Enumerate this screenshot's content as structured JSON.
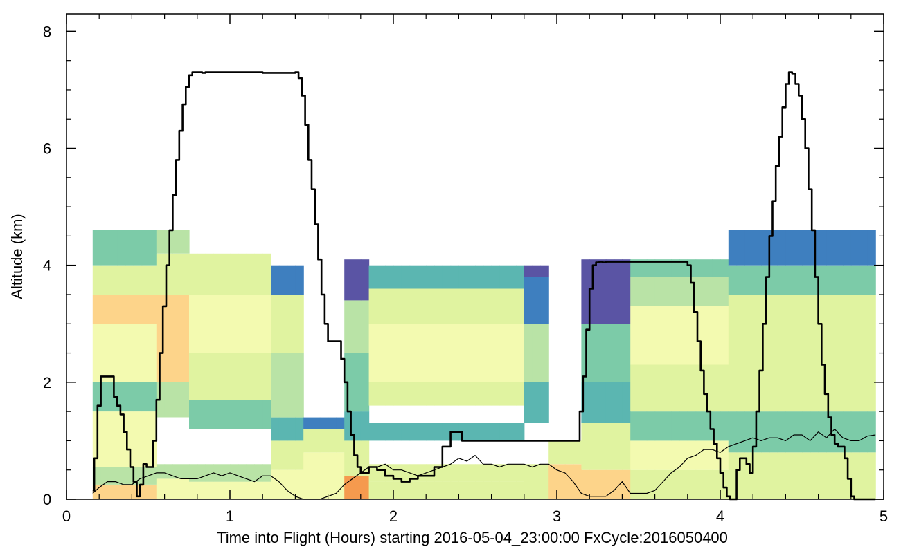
{
  "chart_data": {
    "type": "heatmap",
    "title": "",
    "xlabel": "Time into Flight (Hours) starting 2016-05-04_23:00:00  FxCycle:2016050400",
    "ylabel": "Altitude (km)",
    "xlim": [
      0,
      5
    ],
    "ylim": [
      0,
      8.3
    ],
    "xticks": [
      0,
      1,
      2,
      3,
      4,
      5
    ],
    "xtick_labels": [
      "0",
      "1",
      "2",
      "3",
      "4",
      "5"
    ],
    "yticks": [
      0,
      2,
      4,
      6,
      8
    ],
    "ytick_labels": [
      "0",
      "2",
      "4",
      "6",
      "8"
    ],
    "x_minor_step": 0.2,
    "y_minor_step": 0.5,
    "grid": false,
    "palette": [
      "#f59a4e",
      "#fdd48a",
      "#f3fab0",
      "#e0f3a0",
      "#b9e3a6",
      "#7ccba8",
      "#5bb6b1",
      "#3e7fbf",
      "#5a54a4"
    ],
    "colorbar": "none",
    "series": [
      {
        "style": "thick-black",
        "x": [
          0.16,
          0.17,
          0.19,
          0.21,
          0.23,
          0.28,
          0.29,
          0.31,
          0.33,
          0.35,
          0.37,
          0.39,
          0.41,
          0.43,
          0.45,
          0.47,
          0.49,
          0.51,
          0.53,
          0.55,
          0.57,
          0.59,
          0.61,
          0.63,
          0.65,
          0.67,
          0.69,
          0.71,
          0.73,
          0.75,
          0.77,
          0.79,
          0.81,
          0.83,
          0.85,
          1.05,
          1.2,
          1.4,
          1.42,
          1.44,
          1.46,
          1.48,
          1.5,
          1.52,
          1.54,
          1.56,
          1.58,
          1.6,
          1.62,
          1.64,
          1.66,
          1.68,
          1.7,
          1.72,
          1.74,
          1.76,
          1.78,
          1.8,
          1.85,
          1.9,
          1.95,
          2.0,
          2.05,
          2.1,
          2.15,
          2.2,
          2.25,
          2.3,
          2.35,
          2.38,
          2.42,
          3.0,
          3.12,
          3.14,
          3.16,
          3.18,
          3.2,
          3.22,
          3.24,
          3.26,
          3.28,
          3.3,
          3.35,
          3.55,
          3.75,
          3.8,
          3.82,
          3.84,
          3.86,
          3.88,
          3.9,
          3.92,
          3.94,
          3.96,
          3.98,
          4.0,
          4.02,
          4.04,
          4.06,
          4.08,
          4.1,
          4.12,
          4.14,
          4.16,
          4.18,
          4.2,
          4.22,
          4.24,
          4.26,
          4.28,
          4.3,
          4.32,
          4.34,
          4.36,
          4.38,
          4.4,
          4.42,
          4.44,
          4.46,
          4.48,
          4.5,
          4.52,
          4.54,
          4.56,
          4.58,
          4.6,
          4.62,
          4.64,
          4.66,
          4.68,
          4.7,
          4.72,
          4.74,
          4.76,
          4.78,
          4.8,
          4.82,
          4.84,
          4.86,
          4.88,
          4.9,
          4.92,
          4.95
        ],
        "y": [
          0.15,
          0.7,
          1.6,
          2.1,
          2.1,
          2.1,
          1.75,
          1.6,
          1.45,
          1.15,
          0.85,
          0.55,
          0.3,
          0.05,
          0.25,
          0.6,
          0.55,
          0.55,
          1.0,
          1.7,
          2.5,
          3.3,
          4.0,
          4.6,
          5.2,
          5.8,
          6.3,
          6.75,
          7.05,
          7.25,
          7.3,
          7.3,
          7.3,
          7.29,
          7.3,
          7.3,
          7.29,
          7.3,
          7.2,
          6.9,
          6.4,
          5.8,
          5.3,
          4.7,
          4.1,
          3.5,
          3.0,
          2.7,
          2.7,
          2.7,
          2.7,
          2.4,
          2.0,
          1.5,
          1.1,
          0.75,
          0.55,
          0.45,
          0.55,
          0.5,
          0.4,
          0.35,
          0.3,
          0.35,
          0.4,
          0.4,
          0.55,
          0.9,
          1.15,
          1.15,
          1.0,
          1.0,
          1.0,
          1.5,
          2.1,
          2.9,
          3.6,
          4.0,
          4.05,
          4.06,
          4.05,
          4.06,
          4.06,
          4.06,
          4.06,
          4.0,
          3.7,
          3.2,
          2.7,
          2.2,
          1.8,
          1.5,
          1.2,
          0.95,
          0.7,
          0.45,
          0.2,
          0.05,
          0.0,
          0.0,
          0.5,
          0.7,
          0.7,
          0.6,
          0.45,
          0.9,
          1.5,
          2.2,
          3.0,
          3.8,
          4.5,
          5.1,
          5.7,
          6.2,
          6.7,
          7.1,
          7.3,
          7.28,
          7.1,
          6.9,
          6.5,
          6.0,
          5.3,
          4.6,
          3.8,
          3.0,
          2.3,
          1.8,
          1.4,
          1.1,
          0.95,
          0.9,
          0.9,
          0.7,
          0.35,
          0.05,
          0.0,
          0.0,
          0.0,
          0.0,
          0.0,
          0.0,
          0.0
        ]
      },
      {
        "style": "thin-black",
        "x": [
          0.16,
          0.2,
          0.25,
          0.3,
          0.35,
          0.4,
          0.45,
          0.5,
          0.55,
          0.6,
          0.65,
          0.7,
          0.75,
          0.8,
          0.85,
          0.9,
          0.95,
          1.0,
          1.05,
          1.1,
          1.15,
          1.2,
          1.25,
          1.3,
          1.35,
          1.4,
          1.45,
          1.5,
          1.55,
          1.6,
          1.65,
          1.7,
          1.75,
          1.8,
          1.85,
          1.9,
          1.95,
          2.0,
          2.05,
          2.1,
          2.15,
          2.2,
          2.25,
          2.3,
          2.35,
          2.4,
          2.45,
          2.5,
          2.55,
          2.6,
          2.65,
          2.7,
          2.75,
          2.8,
          2.85,
          2.9,
          2.95,
          3.0,
          3.05,
          3.1,
          3.15,
          3.2,
          3.25,
          3.3,
          3.35,
          3.4,
          3.45,
          3.5,
          3.55,
          3.6,
          3.65,
          3.7,
          3.75,
          3.8,
          3.85,
          3.9,
          3.95,
          4.0,
          4.05,
          4.1,
          4.15,
          4.2,
          4.25,
          4.3,
          4.35,
          4.4,
          4.45,
          4.5,
          4.55,
          4.6,
          4.65,
          4.7,
          4.75,
          4.8,
          4.85,
          4.9,
          4.95
        ],
        "y": [
          0.1,
          0.2,
          0.3,
          0.3,
          0.25,
          0.25,
          0.35,
          0.4,
          0.45,
          0.45,
          0.4,
          0.35,
          0.35,
          0.35,
          0.4,
          0.45,
          0.4,
          0.45,
          0.4,
          0.35,
          0.3,
          0.4,
          0.4,
          0.3,
          0.15,
          0.05,
          0.0,
          0.0,
          0.0,
          0.05,
          0.1,
          0.25,
          0.35,
          0.45,
          0.55,
          0.55,
          0.6,
          0.5,
          0.5,
          0.45,
          0.4,
          0.45,
          0.5,
          0.55,
          0.6,
          0.7,
          0.65,
          0.75,
          0.6,
          0.6,
          0.55,
          0.6,
          0.6,
          0.6,
          0.55,
          0.6,
          0.6,
          0.5,
          0.45,
          0.3,
          0.1,
          0.05,
          0.05,
          0.05,
          0.15,
          0.3,
          0.1,
          0.1,
          0.1,
          0.15,
          0.3,
          0.45,
          0.55,
          0.7,
          0.75,
          0.85,
          0.85,
          0.8,
          0.9,
          0.95,
          1.0,
          1.05,
          1.0,
          1.05,
          1.05,
          1.0,
          1.1,
          1.1,
          1.0,
          1.15,
          1.05,
          1.2,
          1.05,
          1.0,
          1.0,
          1.08,
          1.1
        ]
      }
    ],
    "heatmap_columns": [
      [
        0.16,
        0.55,
        0.05,
        [
          [
            0.0,
            0.25,
            1
          ],
          [
            0.25,
            0.55,
            4
          ],
          [
            0.55,
            1.5,
            2
          ],
          [
            1.5,
            2.0,
            5
          ],
          [
            2.0,
            3.0,
            2
          ],
          [
            3.0,
            3.5,
            1
          ],
          [
            3.5,
            4.0,
            3
          ],
          [
            4.0,
            4.6,
            5
          ]
        ]
      ],
      [
        0.55,
        0.75,
        0.05,
        [
          [
            0.0,
            0.35,
            2
          ],
          [
            0.35,
            0.6,
            4
          ],
          [
            1.4,
            2.0,
            4
          ],
          [
            2.0,
            3.5,
            1
          ],
          [
            3.5,
            4.2,
            3
          ],
          [
            4.2,
            4.6,
            4
          ]
        ]
      ],
      [
        0.75,
        1.25,
        0.05,
        [
          [
            0.0,
            0.3,
            2
          ],
          [
            0.3,
            0.6,
            4
          ],
          [
            1.2,
            1.7,
            5
          ],
          [
            1.7,
            2.5,
            3
          ],
          [
            2.5,
            3.5,
            2
          ],
          [
            3.5,
            4.2,
            3
          ]
        ]
      ],
      [
        1.25,
        1.45,
        0.05,
        [
          [
            0.0,
            0.5,
            2
          ],
          [
            0.5,
            1.0,
            3
          ],
          [
            1.0,
            1.4,
            6
          ],
          [
            1.4,
            2.5,
            4
          ],
          [
            2.5,
            3.5,
            3
          ],
          [
            3.5,
            4.0,
            7
          ]
        ]
      ],
      [
        1.45,
        1.7,
        0.05,
        [
          [
            0.0,
            0.8,
            2
          ],
          [
            0.8,
            1.2,
            3
          ],
          [
            1.2,
            1.4,
            7
          ]
        ]
      ],
      [
        1.7,
        1.85,
        0.05,
        [
          [
            0.0,
            0.4,
            0
          ],
          [
            0.4,
            1.0,
            3
          ],
          [
            1.0,
            1.5,
            6
          ],
          [
            1.5,
            2.5,
            5
          ],
          [
            2.5,
            3.4,
            4
          ],
          [
            3.4,
            4.1,
            8
          ]
        ]
      ],
      [
        1.85,
        2.8,
        0.05,
        [
          [
            0.0,
            0.3,
            3
          ],
          [
            0.3,
            0.6,
            3
          ],
          [
            1.0,
            1.3,
            6
          ],
          [
            1.6,
            2.0,
            3
          ],
          [
            2.0,
            3.0,
            2
          ],
          [
            3.0,
            3.6,
            3
          ],
          [
            3.6,
            4.0,
            6
          ]
        ]
      ],
      [
        2.8,
        2.95,
        0.05,
        [
          [
            0.0,
            0.6,
            3
          ],
          [
            1.3,
            2.0,
            6
          ],
          [
            2.0,
            3.0,
            4
          ],
          [
            3.0,
            3.8,
            7
          ],
          [
            3.8,
            4.0,
            8
          ]
        ]
      ],
      [
        2.95,
        3.15,
        0.05,
        [
          [
            0.0,
            0.6,
            1
          ],
          [
            0.6,
            1.0,
            3
          ]
        ]
      ],
      [
        3.15,
        3.45,
        0.05,
        [
          [
            0.0,
            0.5,
            1
          ],
          [
            0.5,
            1.3,
            3
          ],
          [
            1.3,
            2.0,
            6
          ],
          [
            2.0,
            3.0,
            5
          ],
          [
            3.0,
            4.1,
            8
          ]
        ]
      ],
      [
        3.45,
        4.05,
        0.05,
        [
          [
            0.0,
            0.5,
            3
          ],
          [
            0.5,
            1.0,
            2
          ],
          [
            1.0,
            1.5,
            5
          ],
          [
            1.5,
            2.3,
            3
          ],
          [
            2.3,
            3.3,
            2
          ],
          [
            3.3,
            3.8,
            4
          ],
          [
            3.8,
            4.1,
            5
          ]
        ]
      ],
      [
        4.05,
        4.95,
        0.05,
        [
          [
            0.0,
            0.8,
            3
          ],
          [
            0.8,
            1.5,
            5
          ],
          [
            1.5,
            2.5,
            3
          ],
          [
            2.5,
            3.5,
            3
          ],
          [
            3.5,
            4.0,
            5
          ],
          [
            4.0,
            4.6,
            7
          ]
        ]
      ]
    ]
  }
}
